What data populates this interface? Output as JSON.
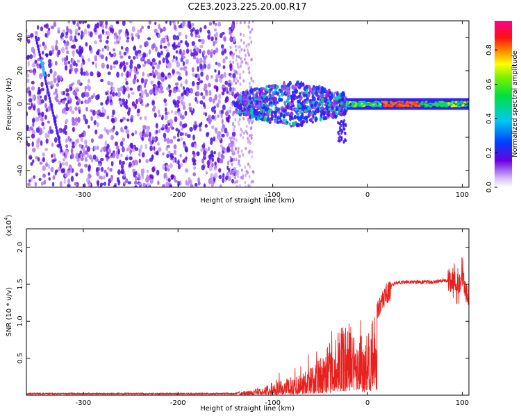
{
  "title": "C2E3.2023.225.20.00.R17",
  "colors": {
    "snr_line": "#e8211e",
    "strong": "#5a00e0",
    "weak": "#c9a8f5",
    "axis": "#000000"
  },
  "chart_data": [
    {
      "type": "heatmap",
      "title": "C2E3.2023.225.20.00.R17",
      "xlabel": "Height of straight line (km)",
      "ylabel": "Frequency (Hz)",
      "xlim": [
        -360,
        107
      ],
      "ylim": [
        -50,
        50
      ],
      "xticks": [
        -300,
        -200,
        -100,
        0,
        100
      ],
      "yticks": [
        -40,
        -20,
        0,
        20,
        40
      ],
      "xtick_labels": [
        "-300",
        "-200",
        "-100",
        "0",
        "100"
      ],
      "ytick_labels": [
        "-40",
        "-20",
        "0",
        "20",
        "40"
      ],
      "colorbar": {
        "label": "Normalized spectral amplitude",
        "range": [
          0.0,
          0.97
        ],
        "ticks": [
          0.0,
          0.2,
          0.4,
          0.6,
          0.8
        ],
        "tick_labels": [
          "0.0",
          "0.2",
          "0.4",
          "0.6",
          "0.8"
        ],
        "colormap": "rainbow (white-violet-blue-cyan-green-yellow-orange-red-magenta)"
      },
      "regions": [
        {
          "x_range": [
            -360,
            -140
          ],
          "freq_range": [
            -50,
            50
          ],
          "description": "broadband scattered noise",
          "amplitude": 0.1
        },
        {
          "x_range": [
            -140,
            -25
          ],
          "freq_range": [
            -15,
            12
          ],
          "description": "noisy signal band",
          "amplitude": 0.3
        },
        {
          "x_range": [
            -25,
            107
          ],
          "freq_range": [
            -3,
            3
          ],
          "description": "narrow carrier line",
          "amplitude": 0.85
        }
      ]
    },
    {
      "type": "line",
      "xlabel": "Height of straight line (km)",
      "ylabel": "SNR (10 * v/v)",
      "y_scale_label": "(x10^4)",
      "xlim": [
        -360,
        107
      ],
      "ylim": [
        0,
        2.25
      ],
      "xticks": [
        -300,
        -200,
        -100,
        0,
        100
      ],
      "yticks": [
        0.5,
        1.0,
        1.5,
        2.0
      ],
      "xtick_labels": [
        "-300",
        "-200",
        "-100",
        "0",
        "100"
      ],
      "ytick_labels": [
        "0.5",
        "1.0",
        "1.5",
        "2.0"
      ],
      "series": [
        {
          "color": "#e8211e",
          "x": [
            -360,
            -300,
            -200,
            -140,
            -130,
            -120,
            -110,
            -100,
            -90,
            -80,
            -70,
            -60,
            -50,
            -40,
            -30,
            -20,
            -10,
            0,
            10,
            20,
            30,
            40,
            50,
            60,
            70,
            80,
            90,
            95,
            100,
            105
          ],
          "y": [
            0.02,
            0.02,
            0.02,
            0.02,
            0.06,
            0.08,
            0.12,
            0.18,
            0.2,
            0.25,
            0.3,
            0.4,
            0.5,
            0.7,
            0.9,
            1.0,
            0.9,
            0.8,
            1.2,
            1.45,
            1.52,
            1.53,
            1.53,
            1.53,
            1.53,
            1.55,
            1.55,
            1.5,
            1.6,
            1.35
          ]
        }
      ]
    }
  ]
}
